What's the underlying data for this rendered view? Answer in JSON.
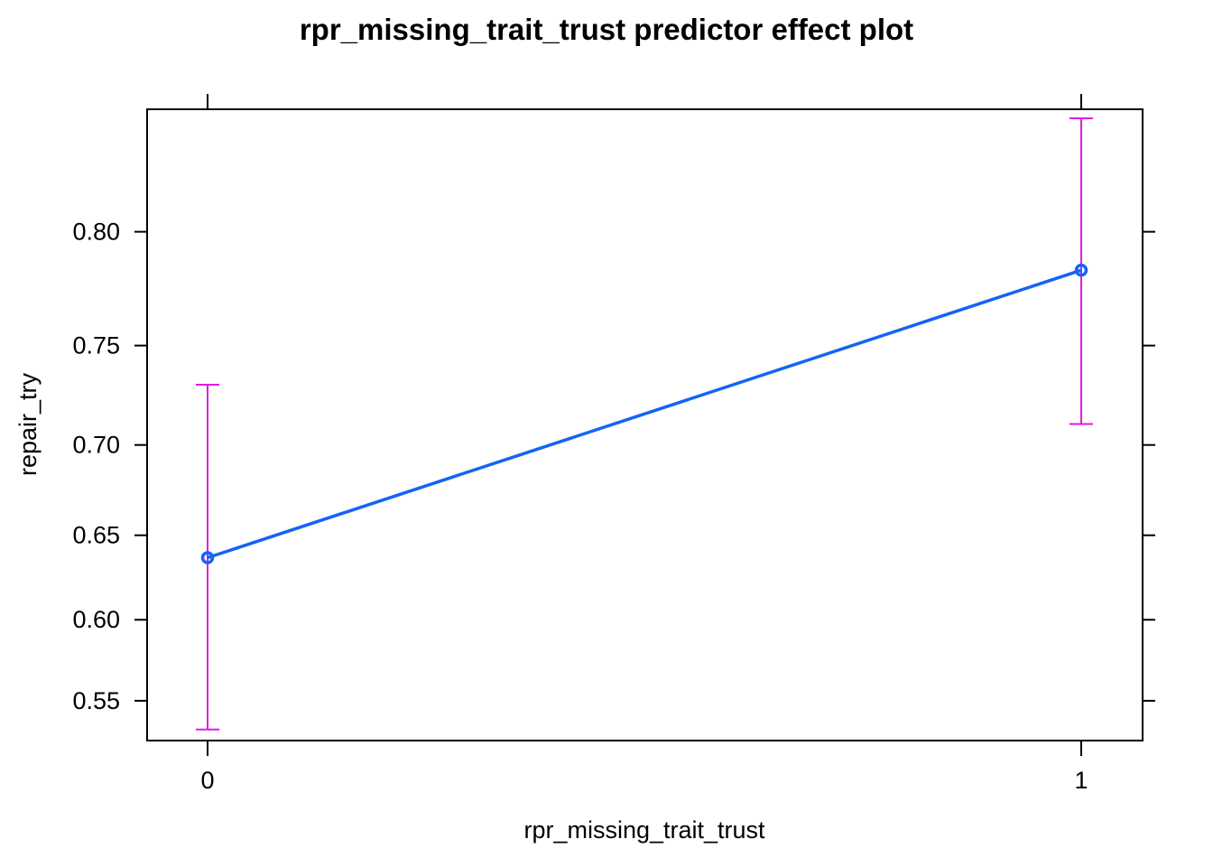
{
  "chart_data": {
    "type": "line",
    "title": "rpr_missing_trait_trust predictor effect plot",
    "xlabel": "rpr_missing_trait_trust",
    "ylabel": "repair_try",
    "x_categories": [
      "0",
      "1"
    ],
    "y_scale": "logit",
    "y_ticks": [
      0.55,
      0.6,
      0.65,
      0.7,
      0.75,
      0.8
    ],
    "y_tick_labels": [
      "0.55",
      "0.60",
      "0.65",
      "0.70",
      "0.75",
      "0.80"
    ],
    "ylim": [
      0.525,
      0.845
    ],
    "series": [
      {
        "x": [
          "0",
          "1"
        ],
        "fit": [
          0.637,
          0.784
        ],
        "lower": [
          0.532,
          0.711
        ],
        "upper": [
          0.731,
          0.842
        ]
      }
    ],
    "grid": false,
    "colors": {
      "line": "#1464F4",
      "error_bar": "#E31AE3",
      "frame": "#000000"
    }
  }
}
